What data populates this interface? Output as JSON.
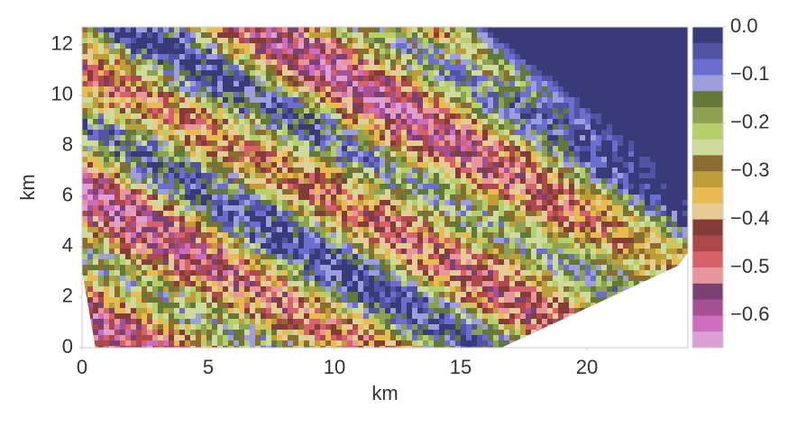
{
  "chart_data": {
    "type": "contourf",
    "x_label": "km",
    "y_label": "km",
    "xlim": [
      0,
      24
    ],
    "ylim": [
      0,
      12.7
    ],
    "xticks": [
      0,
      5,
      10,
      15,
      20
    ],
    "yticks": [
      0,
      2,
      4,
      6,
      8,
      10,
      12
    ],
    "colorbar": {
      "lim": [
        -0.6667,
        0
      ],
      "ticks": [
        {
          "value": 0,
          "label": "0.0"
        },
        {
          "value": -0.1,
          "label": "−0.1"
        },
        {
          "value": -0.2,
          "label": "−0.2"
        },
        {
          "value": -0.3,
          "label": "−0.3"
        },
        {
          "value": -0.4,
          "label": "−0.4"
        },
        {
          "value": -0.5,
          "label": "−0.5"
        },
        {
          "value": -0.6,
          "label": "−0.6"
        }
      ],
      "colors": [
        "#393b79",
        "#5254a3",
        "#6b6ecf",
        "#9c9ede",
        "#637939",
        "#8ca252",
        "#b5cf6b",
        "#cedb9c",
        "#8c6d31",
        "#bd9e39",
        "#e7ba52",
        "#e7cb94",
        "#843c39",
        "#ad494a",
        "#d6616b",
        "#e7969c",
        "#7b4173",
        "#a55194",
        "#ce6dbd",
        "#de9ed6"
      ]
    }
  }
}
